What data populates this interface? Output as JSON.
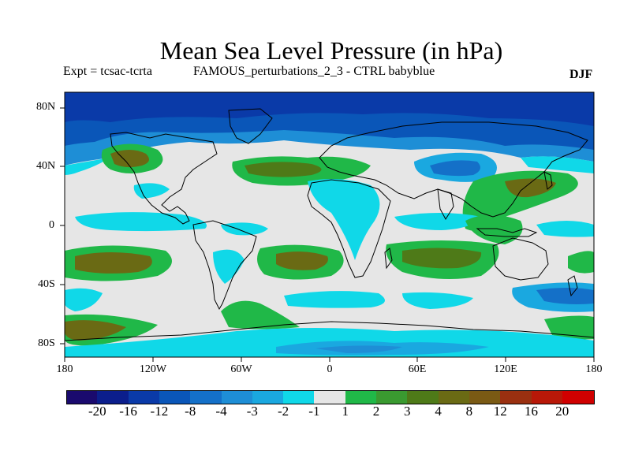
{
  "title": "Mean Sea Level Pressure (in hPa)",
  "subtitle": {
    "experiment": "Expt = tcsac-tcrta",
    "description": "FAMOUS_perturbations_2_3 - CTRL babyblue",
    "season": "DJF"
  },
  "axes": {
    "lat_labels": [
      "80N",
      "40N",
      "0",
      "40S",
      "80S"
    ],
    "lon_labels": [
      "180",
      "120W",
      "60W",
      "0",
      "60E",
      "120E",
      "180"
    ]
  },
  "colorbar": {
    "labels": [
      "-20",
      "-16",
      "-12",
      "-8",
      "-4",
      "-3",
      "-2",
      "-1",
      "1",
      "2",
      "3",
      "4",
      "8",
      "12",
      "16",
      "20"
    ],
    "colors": [
      "#1a0a6e",
      "#0b1e8c",
      "#0a3aa8",
      "#0a56b8",
      "#1470c8",
      "#1e8ed6",
      "#1aa8e0",
      "#10d8e8",
      "#e6e6e6",
      "#20b848",
      "#3a9a30",
      "#4e7a18",
      "#6a6a14",
      "#7a5a14",
      "#9a3010",
      "#b81808",
      "#d00000"
    ]
  },
  "colors": {
    "land_outline": "#000000",
    "neutral": "#e6e6e6",
    "cyan": "#10d8e8",
    "green": "#20b848"
  }
}
